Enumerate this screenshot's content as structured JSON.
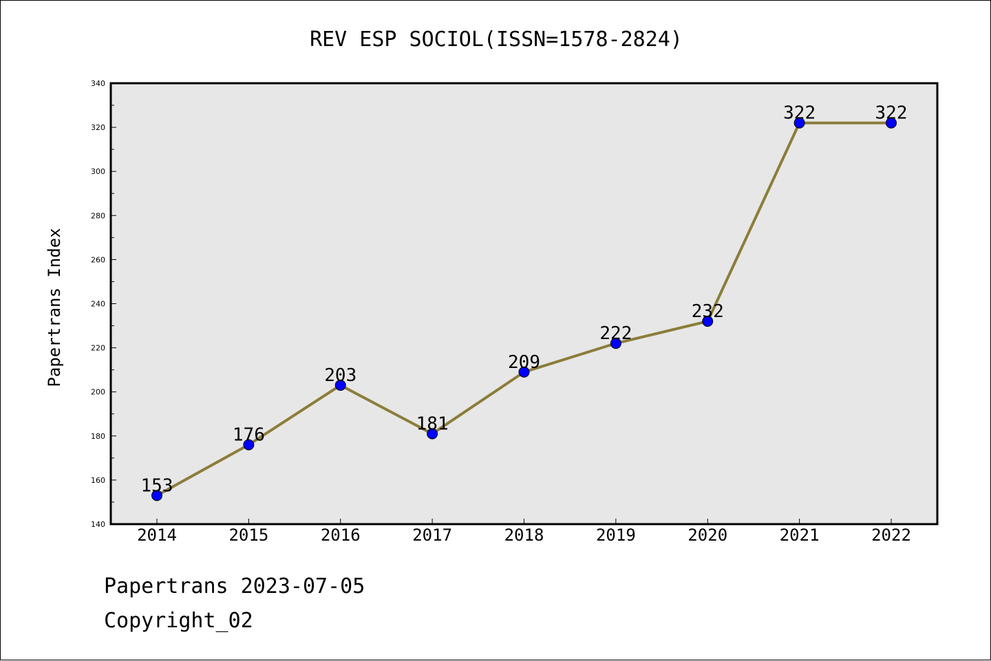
{
  "chart_data": {
    "type": "line",
    "title": "REV ESP SOCIOL(ISSN=1578-2824)",
    "xlabel": "",
    "ylabel": "Papertrans Index",
    "categories": [
      "2014",
      "2015",
      "2016",
      "2017",
      "2018",
      "2019",
      "2020",
      "2021",
      "2022"
    ],
    "values": [
      153,
      176,
      203,
      181,
      209,
      222,
      232,
      322,
      322
    ],
    "data_labels": [
      "153",
      "176",
      "203",
      "181",
      "209",
      "222",
      "232",
      "322",
      "322"
    ],
    "ylim": [
      140,
      340
    ],
    "yticks": [
      140,
      160,
      180,
      200,
      220,
      240,
      260,
      280,
      300,
      320,
      340
    ],
    "ytick_labels": [
      "140",
      "160",
      "180",
      "200",
      "220",
      "240",
      "260",
      "280",
      "300",
      "320",
      "340"
    ],
    "grid": false,
    "colors": {
      "line": "#8b7d3a",
      "marker": "#0000ff",
      "plot_background": "#e7e7e7"
    }
  },
  "footer": {
    "date_line": "Papertrans 2023-07-05",
    "copyright": "Copyright_02"
  }
}
